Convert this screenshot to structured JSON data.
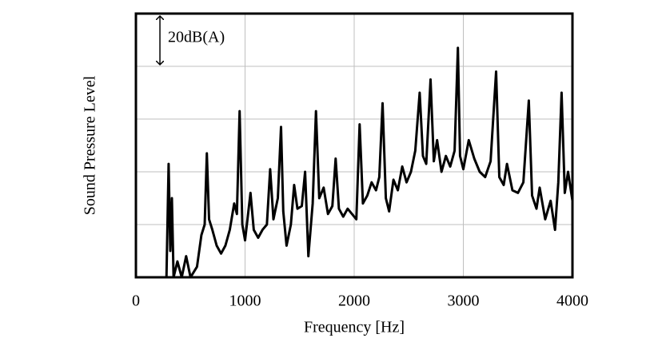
{
  "chart_data": {
    "type": "line",
    "x_label": "Frequency [Hz]",
    "y_label": "Sound Pressure Level",
    "annotation": {
      "text": "20dB(A)",
      "x": 220,
      "y": [
        80,
        100
      ]
    },
    "x": [
      280,
      300,
      315,
      330,
      345,
      380,
      420,
      460,
      500,
      560,
      600,
      630,
      650,
      670,
      700,
      740,
      780,
      820,
      860,
      900,
      925,
      950,
      975,
      1000,
      1050,
      1080,
      1120,
      1160,
      1200,
      1230,
      1260,
      1300,
      1330,
      1350,
      1380,
      1420,
      1450,
      1480,
      1520,
      1550,
      1580,
      1620,
      1650,
      1680,
      1720,
      1760,
      1800,
      1830,
      1860,
      1900,
      1940,
      1980,
      2020,
      2050,
      2080,
      2120,
      2160,
      2200,
      2230,
      2260,
      2290,
      2320,
      2360,
      2400,
      2440,
      2480,
      2520,
      2560,
      2600,
      2630,
      2660,
      2700,
      2730,
      2760,
      2800,
      2840,
      2880,
      2920,
      2950,
      2970,
      3000,
      3050,
      3100,
      3150,
      3200,
      3250,
      3300,
      3330,
      3370,
      3400,
      3450,
      3500,
      3550,
      3600,
      3630,
      3670,
      3700,
      3750,
      3800,
      3840,
      3870,
      3900,
      3930,
      3960,
      4000
    ],
    "values": [
      0,
      43,
      10,
      30,
      0,
      6,
      0,
      8,
      0,
      4,
      16,
      20,
      47,
      22,
      18,
      12,
      9,
      12,
      18,
      28,
      24,
      63,
      20,
      14,
      32,
      18,
      15,
      18,
      20,
      41,
      22,
      30,
      57,
      25,
      12,
      20,
      35,
      26,
      27,
      40,
      8,
      28,
      63,
      30,
      34,
      24,
      27,
      45,
      26,
      23,
      26,
      24,
      22,
      58,
      28,
      31,
      36,
      33,
      38,
      66,
      30,
      25,
      37,
      33,
      42,
      36,
      40,
      48,
      70,
      46,
      43,
      75,
      44,
      52,
      40,
      46,
      42,
      48,
      87,
      46,
      41,
      52,
      45,
      40,
      38,
      44,
      78,
      38,
      35,
      43,
      33,
      32,
      36,
      67,
      31,
      26,
      34,
      22,
      29,
      18,
      36,
      70,
      32,
      40,
      29
    ],
    "color": "#000000",
    "xlim": [
      0,
      4000
    ],
    "xticks": [
      0,
      1000,
      2000,
      3000,
      4000
    ],
    "ylim": [
      0,
      100
    ],
    "yticks": [
      0,
      20,
      40,
      60,
      80,
      100
    ],
    "grid": true
  }
}
